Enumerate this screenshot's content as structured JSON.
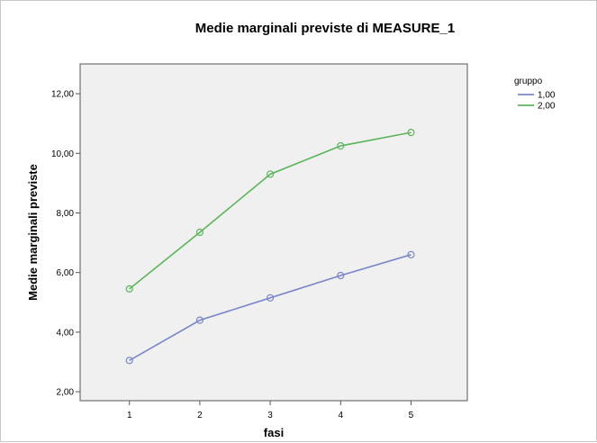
{
  "chart_data": {
    "type": "line",
    "title": "Medie marginali previste di MEASURE_1",
    "xlabel": "fasi",
    "ylabel": "Medie marginali previste",
    "x": [
      1,
      2,
      3,
      4,
      5
    ],
    "x_tick_labels": [
      "1",
      "2",
      "3",
      "4",
      "5"
    ],
    "ylim": [
      1.7,
      13.0
    ],
    "y_ticks": [
      2,
      4,
      6,
      8,
      10,
      12
    ],
    "y_tick_labels": [
      "2,00",
      "4,00",
      "6,00",
      "8,00",
      "10,00",
      "12,00"
    ],
    "grid": false,
    "legend_title": "gruppo",
    "legend_position": "right",
    "plot_background": "#f0f0f0",
    "series": [
      {
        "name": "1,00",
        "color": "#7b86c9",
        "values": [
          3.05,
          4.4,
          5.15,
          5.9,
          6.6
        ]
      },
      {
        "name": "2,00",
        "color": "#5cb55c",
        "values": [
          5.45,
          7.35,
          9.3,
          10.25,
          10.7
        ]
      }
    ]
  }
}
